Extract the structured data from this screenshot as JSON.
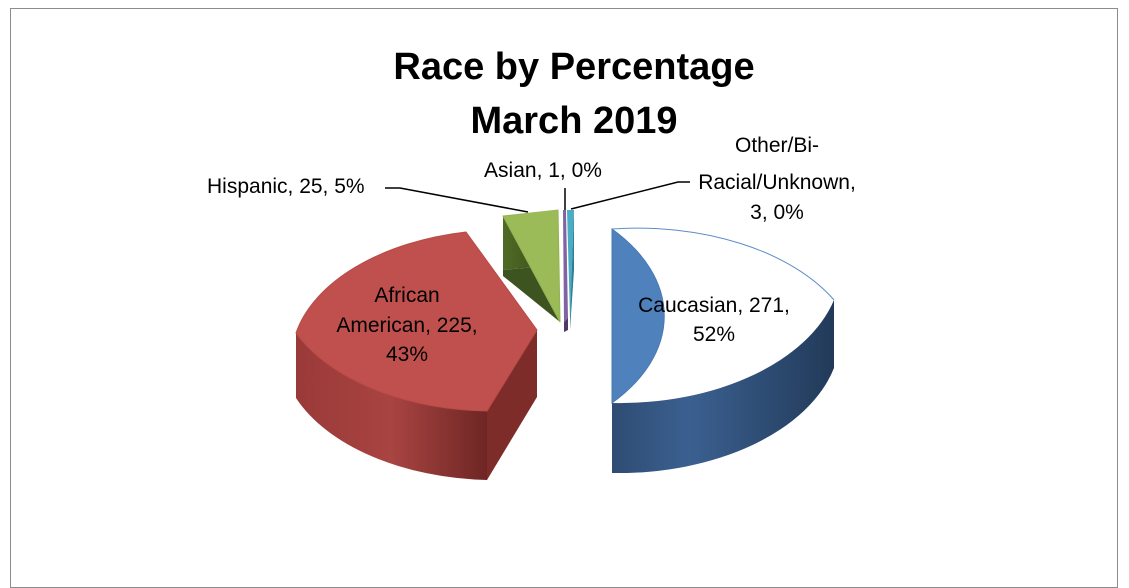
{
  "chart_data": {
    "type": "pie",
    "title": "Race by Percentage",
    "subtitle": "March 2019",
    "slices": [
      {
        "name": "Caucasian",
        "value": 271,
        "percent_label": "52%",
        "color": "#4f81bd",
        "label_lines": [
          "Caucasian, 271,",
          "52%"
        ]
      },
      {
        "name": "African American",
        "value": 225,
        "percent_label": "43%",
        "color": "#c0504d",
        "label_lines": [
          "African",
          "American, 225,",
          "43%"
        ]
      },
      {
        "name": "Hispanic",
        "value": 25,
        "percent_label": "5%",
        "color": "#9bbb59",
        "label_lines": [
          "Hispanic, 25, 5%"
        ]
      },
      {
        "name": "Asian",
        "value": 1,
        "percent_label": "0%",
        "color": "#8064a2",
        "label_lines": [
          "Asian, 1, 0%"
        ]
      },
      {
        "name": "Other/Bi-Racial/Unknown",
        "value": 3,
        "percent_label": "0%",
        "color": "#4bacc6",
        "label_lines": [
          "Other/Bi-",
          "Racial/Unknown,",
          "3, 0%"
        ]
      }
    ]
  }
}
